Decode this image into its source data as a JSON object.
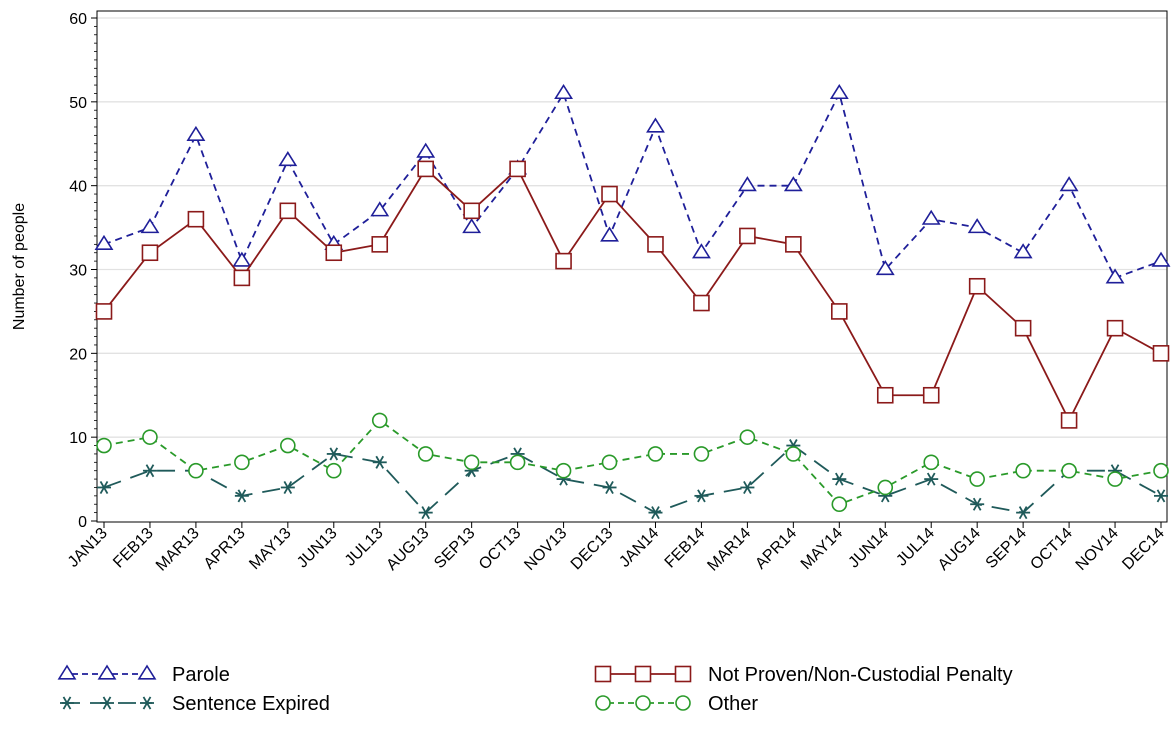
{
  "chart_data": {
    "type": "line",
    "title": "",
    "xlabel": "",
    "ylabel": "Number of people",
    "ylim": [
      0,
      60
    ],
    "yticks": [
      0,
      10,
      20,
      30,
      40,
      50,
      60
    ],
    "grid": true,
    "legend_placement": "bottom",
    "categories": [
      "JAN13",
      "FEB13",
      "MAR13",
      "APR13",
      "MAY13",
      "JUN13",
      "JUL13",
      "AUG13",
      "SEP13",
      "OCT13",
      "NOV13",
      "DEC13",
      "JAN14",
      "FEB14",
      "MAR14",
      "APR14",
      "MAY14",
      "JUN14",
      "JUL14",
      "AUG14",
      "SEP14",
      "OCT14",
      "NOV14",
      "DEC14"
    ],
    "series": [
      {
        "name": "Parole",
        "color": "#1f1f99",
        "dash": "dashed",
        "marker": "triangle",
        "values": [
          33,
          35,
          46,
          31,
          43,
          33,
          37,
          44,
          35,
          42,
          51,
          34,
          47,
          32,
          40,
          40,
          51,
          30,
          36,
          35,
          32,
          40,
          29,
          31
        ]
      },
      {
        "name": "Not Proven/Non-Custodial Penalty",
        "color": "#8b1a1a",
        "dash": "solid",
        "marker": "square",
        "values": [
          25,
          32,
          36,
          29,
          37,
          32,
          33,
          42,
          37,
          42,
          31,
          39,
          33,
          26,
          34,
          33,
          25,
          15,
          15,
          28,
          23,
          12,
          23,
          20
        ]
      },
      {
        "name": "Sentence Expired",
        "color": "#1f5a5a",
        "dash": "longdash",
        "marker": "star",
        "values": [
          4,
          6,
          6,
          3,
          4,
          8,
          7,
          1,
          6,
          8,
          5,
          4,
          1,
          3,
          4,
          9,
          5,
          3,
          5,
          2,
          1,
          6,
          6,
          3
        ]
      },
      {
        "name": "Other",
        "color": "#2a9a2a",
        "dash": "dashed",
        "marker": "circle",
        "values": [
          9,
          10,
          6,
          7,
          9,
          6,
          12,
          8,
          7,
          7,
          6,
          7,
          8,
          8,
          10,
          8,
          2,
          4,
          7,
          5,
          6,
          6,
          5,
          6
        ]
      }
    ]
  }
}
